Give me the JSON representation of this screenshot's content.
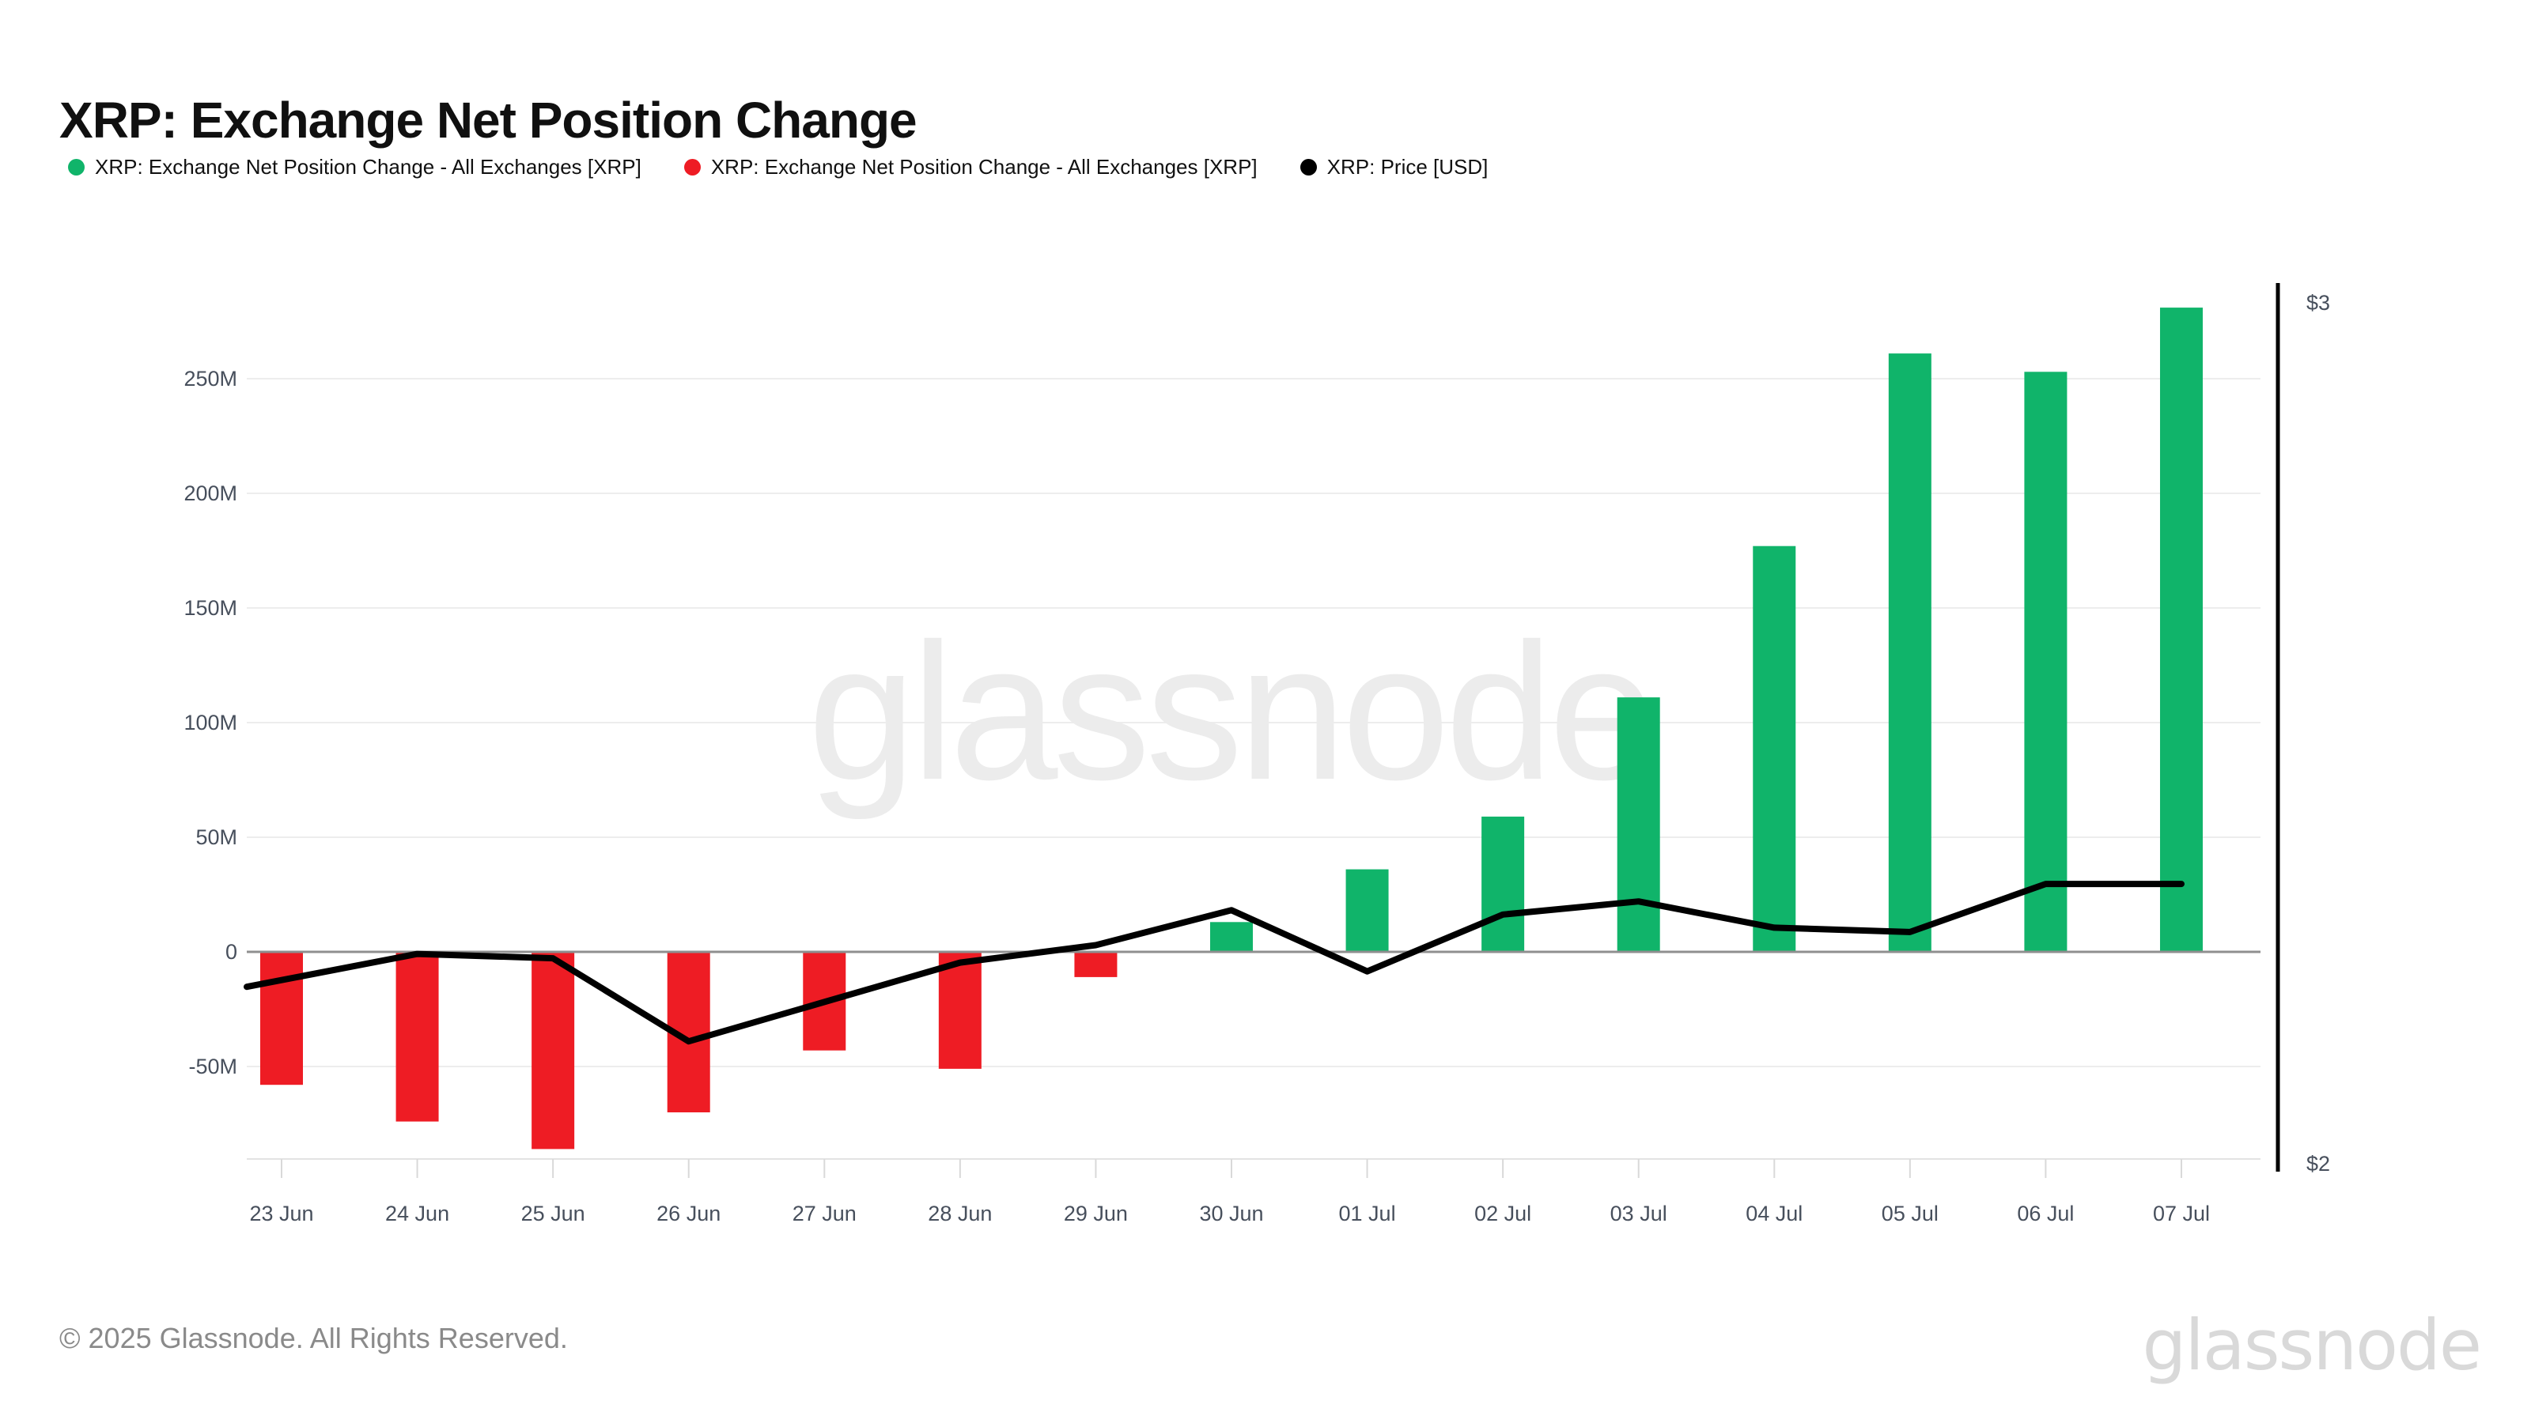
{
  "title": "XRP: Exchange Net Position Change",
  "legend": {
    "items": [
      {
        "label": "XRP: Exchange Net Position Change - All Exchanges [XRP]",
        "color": "#10b46a"
      },
      {
        "label": "XRP: Exchange Net Position Change - All Exchanges [XRP]",
        "color": "#ee1c24"
      },
      {
        "label": "XRP: Price [USD]",
        "color": "#000000"
      }
    ]
  },
  "watermark": "glassnode",
  "footer": {
    "copyright": "© 2025 Glassnode. All Rights Reserved.",
    "brand": "glassnode"
  },
  "chart_data": {
    "type": "bar",
    "title": "XRP: Exchange Net Position Change",
    "categories": [
      "23 Jun",
      "24 Jun",
      "25 Jun",
      "26 Jun",
      "27 Jun",
      "28 Jun",
      "29 Jun",
      "30 Jun",
      "01 Jul",
      "02 Jul",
      "03 Jul",
      "04 Jul",
      "05 Jul",
      "06 Jul",
      "07 Jul"
    ],
    "series": [
      {
        "name": "XRP: Exchange Net Position Change - All Exchanges [XRP]",
        "type": "bar",
        "unit": "XRP (millions)",
        "values_millions": [
          -58,
          -74,
          -86,
          -70,
          -43,
          -51,
          -11,
          13,
          36,
          59,
          111,
          177,
          261,
          253,
          281
        ],
        "color_positive": "#10b46a",
        "color_negative": "#ee1c24"
      },
      {
        "name": "XRP: Price [USD]",
        "type": "line",
        "unit": "USD",
        "values_usd": [
          2.21,
          2.24,
          2.235,
          2.14,
          2.185,
          2.23,
          2.25,
          2.29,
          2.22,
          2.285,
          2.3,
          2.27,
          2.265,
          2.32,
          2.32
        ],
        "color": "#000000"
      }
    ],
    "left_axis": {
      "tick_labels": [
        "250M",
        "200M",
        "150M",
        "100M",
        "50M",
        "0",
        "-50M"
      ],
      "tick_values_millions": [
        250,
        200,
        150,
        100,
        50,
        0,
        -50
      ],
      "ylim_millions": [
        -90,
        290
      ]
    },
    "right_axis": {
      "tick_labels": [
        "$3",
        "$2"
      ],
      "min_usd": 2,
      "max_usd": 3
    },
    "grid": true,
    "legend_position": "top",
    "label_color": "#474f5c"
  }
}
